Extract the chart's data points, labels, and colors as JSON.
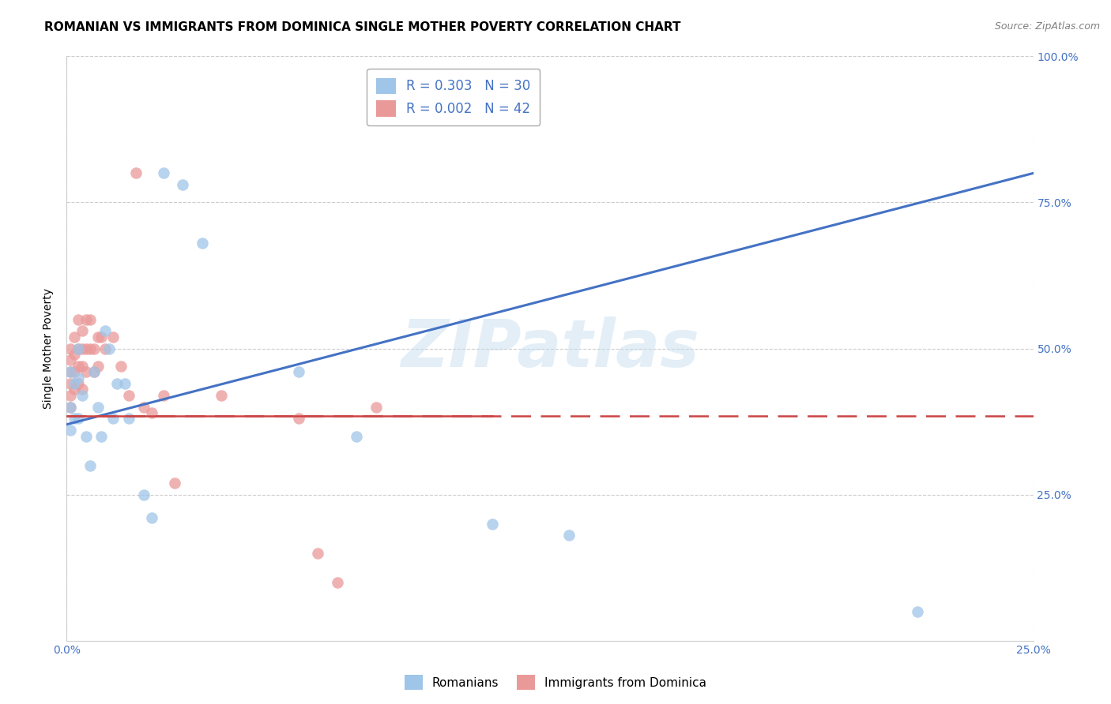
{
  "title": "ROMANIAN VS IMMIGRANTS FROM DOMINICA SINGLE MOTHER POVERTY CORRELATION CHART",
  "source": "Source: ZipAtlas.com",
  "ylabel": "Single Mother Poverty",
  "watermark": "ZIPatlas",
  "legend_romanian": "R = 0.303   N = 30",
  "legend_dominica": "R = 0.002   N = 42",
  "legend_label1": "Romanians",
  "legend_label2": "Immigrants from Dominica",
  "xlim": [
    0.0,
    0.25
  ],
  "ylim": [
    0.0,
    1.0
  ],
  "xtick_labels": [
    "0.0%",
    "25.0%"
  ],
  "ytick_labels": [
    "25.0%",
    "50.0%",
    "75.0%",
    "100.0%"
  ],
  "ytick_vals": [
    0.25,
    0.5,
    0.75,
    1.0
  ],
  "xtick_vals": [
    0.0,
    0.25
  ],
  "color_romanian": "#9fc5e8",
  "color_dominica": "#ea9999",
  "line_color_romanian": "#4472c4",
  "line_color_dominica": "#cc4444",
  "background_color": "#ffffff",
  "grid_color": "#cccccc",
  "title_fontsize": 11,
  "axis_label_fontsize": 10,
  "tick_fontsize": 10,
  "romanian_x": [
    0.001,
    0.001,
    0.001,
    0.002,
    0.002,
    0.003,
    0.003,
    0.003,
    0.004,
    0.005,
    0.006,
    0.007,
    0.008,
    0.009,
    0.01,
    0.011,
    0.012,
    0.013,
    0.015,
    0.016,
    0.02,
    0.022,
    0.025,
    0.03,
    0.035,
    0.06,
    0.075,
    0.11,
    0.13,
    0.22
  ],
  "romanian_y": [
    0.46,
    0.4,
    0.36,
    0.44,
    0.38,
    0.5,
    0.45,
    0.38,
    0.42,
    0.35,
    0.3,
    0.46,
    0.4,
    0.35,
    0.53,
    0.5,
    0.38,
    0.44,
    0.44,
    0.38,
    0.25,
    0.21,
    0.8,
    0.78,
    0.68,
    0.46,
    0.35,
    0.2,
    0.18,
    0.05
  ],
  "dominica_x": [
    0.001,
    0.001,
    0.001,
    0.001,
    0.001,
    0.001,
    0.002,
    0.002,
    0.002,
    0.002,
    0.003,
    0.003,
    0.003,
    0.003,
    0.004,
    0.004,
    0.004,
    0.004,
    0.005,
    0.005,
    0.005,
    0.006,
    0.006,
    0.007,
    0.007,
    0.008,
    0.008,
    0.009,
    0.01,
    0.012,
    0.014,
    0.016,
    0.018,
    0.02,
    0.022,
    0.025,
    0.028,
    0.04,
    0.06,
    0.065,
    0.07,
    0.08
  ],
  "dominica_y": [
    0.5,
    0.48,
    0.46,
    0.44,
    0.42,
    0.4,
    0.52,
    0.49,
    0.46,
    0.43,
    0.55,
    0.5,
    0.47,
    0.44,
    0.53,
    0.5,
    0.47,
    0.43,
    0.55,
    0.5,
    0.46,
    0.55,
    0.5,
    0.5,
    0.46,
    0.52,
    0.47,
    0.52,
    0.5,
    0.52,
    0.47,
    0.42,
    0.8,
    0.4,
    0.39,
    0.42,
    0.27,
    0.42,
    0.38,
    0.15,
    0.1,
    0.4
  ],
  "line_rom_x0": 0.0,
  "line_rom_y0": 0.37,
  "line_rom_x1": 0.25,
  "line_rom_y1": 0.8,
  "line_dom_x0": 0.0,
  "line_dom_y0": 0.385,
  "line_dom_x1": 0.25,
  "line_dom_y1": 0.385
}
